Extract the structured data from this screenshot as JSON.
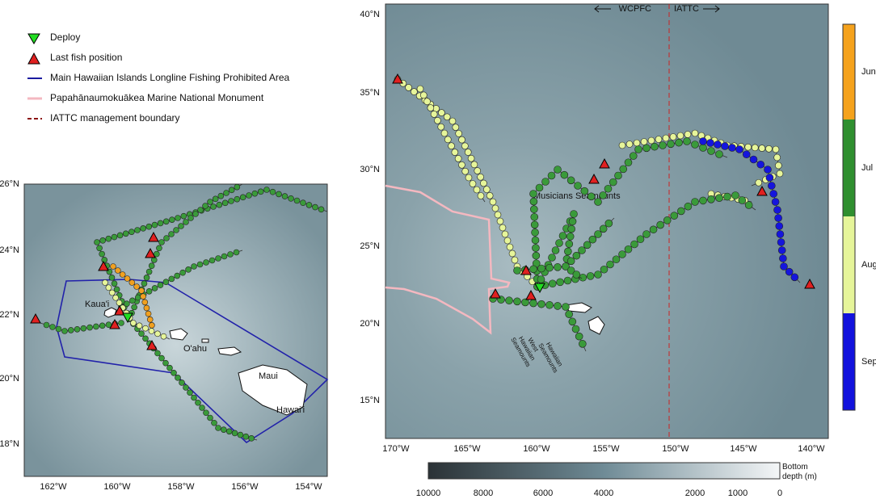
{
  "legend": {
    "items": [
      "Deploy",
      "Last fish position",
      "Main Hawaiian Islands Longline Fishing Prohibited Area",
      "Papahānaumokuākea Marine National Monument",
      "IATTC management boundary"
    ]
  },
  "inset_map": {
    "y_labels": [
      "26°N",
      "24°N",
      "22°N",
      "20°N",
      "18°N"
    ],
    "x_labels": [
      "162°W",
      "160°W",
      "158°W",
      "156°W",
      "154°W"
    ],
    "places": [
      "Kaua'i",
      "O'ahu",
      "Maui",
      "Hawai'i"
    ]
  },
  "main_map": {
    "y_labels": [
      "40°N",
      "35°N",
      "30°N",
      "25°N",
      "20°N",
      "15°N"
    ],
    "x_labels": [
      "170°W",
      "165°W",
      "160°W",
      "155°W",
      "150°W",
      "145°W",
      "140°W"
    ],
    "boundary_labels": [
      "WCPFC",
      "IATTC"
    ],
    "features": [
      "Musicians Seamounts",
      "West Hawaiian Seamounts",
      "Hawaiian Seamounts"
    ]
  },
  "month_scale": {
    "labels": [
      "Jun",
      "Jul",
      "Aug",
      "Sep"
    ]
  },
  "depth_scale": {
    "title": "Bottom depth (m)",
    "labels": [
      10000,
      8000,
      6000,
      4000,
      2000,
      1000,
      0
    ]
  }
}
